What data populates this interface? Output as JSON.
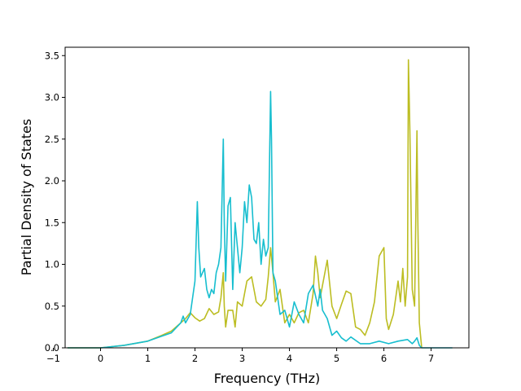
{
  "chart_data": {
    "type": "line",
    "title": "",
    "xlabel": "Frequency (THz)",
    "ylabel": "Partial Density of States",
    "xlim": [
      -0.75,
      7.8
    ],
    "ylim": [
      0,
      3.6
    ],
    "xticks": [
      -1,
      0,
      1,
      2,
      3,
      4,
      5,
      6,
      7
    ],
    "yticks": [
      0.0,
      0.5,
      1.0,
      1.5,
      2.0,
      2.5,
      3.0,
      3.5
    ],
    "xtick_labels": [
      "−1",
      "0",
      "1",
      "2",
      "3",
      "4",
      "5",
      "6",
      "7"
    ],
    "ytick_labels": [
      "0.0",
      "0.5",
      "1.0",
      "1.5",
      "2.0",
      "2.5",
      "3.0",
      "3.5"
    ],
    "grid": false,
    "legend": "none",
    "series": [
      {
        "color": "#bcbd22",
        "x": [
          -0.7,
          0.0,
          0.5,
          1.0,
          1.3,
          1.5,
          1.7,
          1.8,
          1.9,
          2.0,
          2.1,
          2.2,
          2.3,
          2.4,
          2.5,
          2.55,
          2.6,
          2.62,
          2.65,
          2.7,
          2.8,
          2.85,
          2.9,
          3.0,
          3.1,
          3.2,
          3.3,
          3.4,
          3.5,
          3.55,
          3.6,
          3.65,
          3.7,
          3.8,
          3.9,
          4.0,
          4.1,
          4.2,
          4.3,
          4.4,
          4.5,
          4.55,
          4.6,
          4.65,
          4.7,
          4.8,
          4.9,
          5.0,
          5.1,
          5.2,
          5.3,
          5.4,
          5.5,
          5.6,
          5.7,
          5.8,
          5.9,
          6.0,
          6.05,
          6.1,
          6.2,
          6.3,
          6.35,
          6.4,
          6.45,
          6.5,
          6.52,
          6.55,
          6.6,
          6.65,
          6.7,
          6.72,
          6.75,
          6.8
        ],
        "y": [
          0.0,
          0.0,
          0.03,
          0.08,
          0.15,
          0.2,
          0.3,
          0.35,
          0.42,
          0.36,
          0.32,
          0.35,
          0.47,
          0.4,
          0.43,
          0.6,
          0.9,
          0.5,
          0.25,
          0.45,
          0.45,
          0.25,
          0.55,
          0.5,
          0.8,
          0.85,
          0.55,
          0.5,
          0.58,
          0.85,
          1.2,
          0.9,
          0.55,
          0.7,
          0.3,
          0.4,
          0.3,
          0.42,
          0.45,
          0.3,
          0.65,
          1.1,
          0.9,
          0.6,
          0.75,
          1.05,
          0.5,
          0.35,
          0.52,
          0.68,
          0.65,
          0.25,
          0.22,
          0.15,
          0.3,
          0.55,
          1.1,
          1.2,
          0.35,
          0.22,
          0.4,
          0.8,
          0.55,
          0.95,
          0.5,
          0.85,
          3.45,
          2.6,
          0.7,
          0.5,
          2.6,
          1.5,
          0.3,
          0.0
        ]
      },
      {
        "color": "#17becf",
        "x": [
          -0.7,
          0.0,
          0.5,
          1.0,
          1.3,
          1.5,
          1.7,
          1.75,
          1.8,
          1.9,
          2.0,
          2.05,
          2.08,
          2.12,
          2.2,
          2.25,
          2.3,
          2.35,
          2.4,
          2.45,
          2.5,
          2.55,
          2.6,
          2.62,
          2.65,
          2.7,
          2.75,
          2.8,
          2.85,
          2.9,
          2.95,
          3.0,
          3.05,
          3.1,
          3.15,
          3.2,
          3.25,
          3.3,
          3.35,
          3.4,
          3.45,
          3.5,
          3.55,
          3.6,
          3.62,
          3.65,
          3.7,
          3.75,
          3.8,
          3.9,
          4.0,
          4.1,
          4.2,
          4.3,
          4.4,
          4.5,
          4.6,
          4.65,
          4.7,
          4.8,
          4.9,
          5.0,
          5.1,
          5.2,
          5.3,
          5.5,
          5.7,
          5.9,
          6.1,
          6.3,
          6.5,
          6.6,
          6.65,
          6.7,
          6.75,
          6.8,
          7.45
        ],
        "y": [
          0.0,
          0.0,
          0.03,
          0.08,
          0.14,
          0.18,
          0.3,
          0.38,
          0.3,
          0.4,
          0.8,
          1.75,
          1.2,
          0.85,
          0.95,
          0.7,
          0.6,
          0.7,
          0.65,
          0.9,
          1.0,
          1.2,
          2.5,
          1.5,
          0.8,
          1.7,
          1.8,
          0.7,
          1.5,
          1.2,
          0.9,
          1.2,
          1.75,
          1.5,
          1.95,
          1.8,
          1.3,
          1.25,
          1.5,
          1.0,
          1.3,
          1.1,
          1.2,
          3.07,
          2.5,
          0.9,
          0.8,
          0.6,
          0.4,
          0.45,
          0.25,
          0.55,
          0.4,
          0.3,
          0.65,
          0.75,
          0.5,
          0.7,
          0.45,
          0.35,
          0.15,
          0.2,
          0.12,
          0.08,
          0.13,
          0.05,
          0.05,
          0.08,
          0.05,
          0.08,
          0.1,
          0.05,
          0.08,
          0.12,
          0.03,
          0.0,
          0.0
        ]
      }
    ]
  }
}
